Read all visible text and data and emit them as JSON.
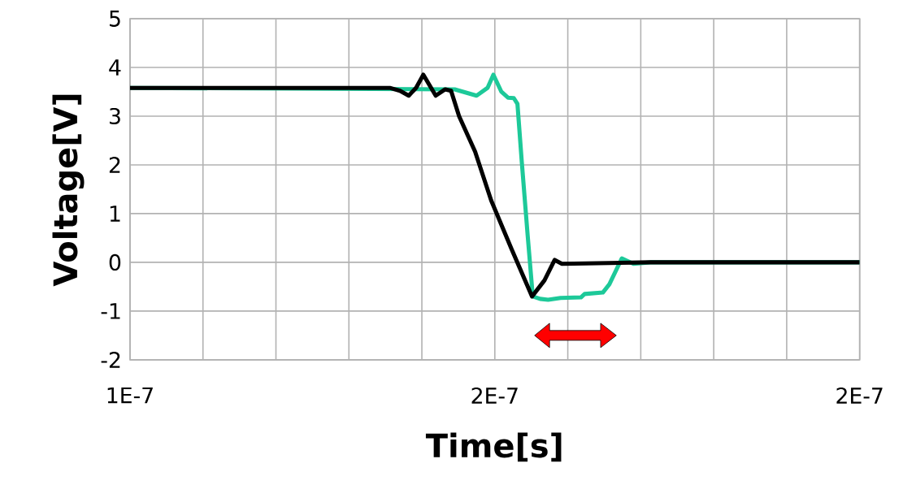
{
  "chart_data": {
    "type": "line",
    "xlabel": "Time[s]",
    "ylabel": "Voltage[V]",
    "xlim": [
      1.4e-07,
      2.4e-07
    ],
    "ylim": [
      -2,
      5
    ],
    "xticks": [
      {
        "value": 1.4e-07,
        "label": "1E-7"
      },
      {
        "value": 1.5e-07,
        "label": null
      },
      {
        "value": 1.6e-07,
        "label": null
      },
      {
        "value": 1.7e-07,
        "label": null
      },
      {
        "value": 1.8e-07,
        "label": null
      },
      {
        "value": 1.9e-07,
        "label": "2E-7"
      },
      {
        "value": 2e-07,
        "label": null
      },
      {
        "value": 2.1e-07,
        "label": null
      },
      {
        "value": 2.2e-07,
        "label": null
      },
      {
        "value": 2.3e-07,
        "label": null
      },
      {
        "value": 2.4e-07,
        "label": "2E-7"
      }
    ],
    "yticks": [
      -2,
      -1,
      0,
      1,
      2,
      3,
      4,
      5
    ],
    "grid": true,
    "line_style": "solid",
    "series": [
      {
        "color": "#1dc999",
        "x": [
          1.4e-07,
          1.845e-07,
          1.875e-07,
          1.89e-07,
          1.898e-07,
          1.909e-07,
          1.918e-07,
          1.926e-07,
          1.931e-07,
          1.937e-07,
          1.945e-07,
          1.952e-07,
          1.962e-07,
          1.973e-07,
          1.99e-07,
          2.018e-07,
          2.023e-07,
          2.048e-07,
          2.057e-07,
          2.074e-07,
          2.09e-07,
          2.113e-07,
          2.4e-07
        ],
        "values": [
          3.58,
          3.55,
          3.42,
          3.58,
          3.85,
          3.5,
          3.38,
          3.37,
          3.25,
          2.05,
          0.55,
          -0.7,
          -0.75,
          -0.77,
          -0.73,
          -0.72,
          -0.65,
          -0.62,
          -0.45,
          0.08,
          -0.03,
          0,
          0
        ]
      },
      {
        "color": "#000000",
        "x": [
          1.4e-07,
          1.756e-07,
          1.77e-07,
          1.782e-07,
          1.792e-07,
          1.802e-07,
          1.819e-07,
          1.832e-07,
          1.84e-07,
          1.851e-07,
          1.873e-07,
          1.895e-07,
          1.923e-07,
          1.951e-07,
          1.968e-07,
          1.982e-07,
          1.992e-07,
          2.113e-07,
          2.4e-07
        ],
        "values": [
          3.58,
          3.58,
          3.52,
          3.42,
          3.58,
          3.85,
          3.42,
          3.55,
          3.52,
          3.0,
          2.27,
          1.27,
          0.27,
          -0.7,
          -0.37,
          0.05,
          -0.03,
          0,
          0
        ]
      }
    ]
  }
}
